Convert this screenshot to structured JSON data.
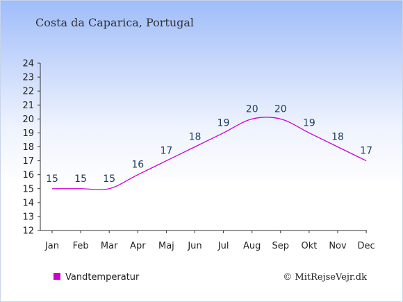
{
  "chart_data": {
    "type": "line",
    "title": "Costa da Caparica, Portugal",
    "categories": [
      "Jan",
      "Feb",
      "Mar",
      "Apr",
      "Maj",
      "Jun",
      "Jul",
      "Aug",
      "Sep",
      "Okt",
      "Nov",
      "Dec"
    ],
    "series": [
      {
        "name": "Vandtemperatur",
        "values": [
          15,
          15,
          15,
          16,
          17,
          18,
          19,
          20,
          20,
          19,
          18,
          17
        ],
        "color": "#cc00cc"
      }
    ],
    "ylim": [
      12,
      24
    ],
    "yticks": [
      12,
      13,
      14,
      15,
      16,
      17,
      18,
      19,
      20,
      21,
      22,
      23,
      24
    ],
    "grid": false,
    "legend_position": "bottom-left",
    "xlabel": "",
    "ylabel": ""
  },
  "copyright": "© MitRejseVejr.dk"
}
